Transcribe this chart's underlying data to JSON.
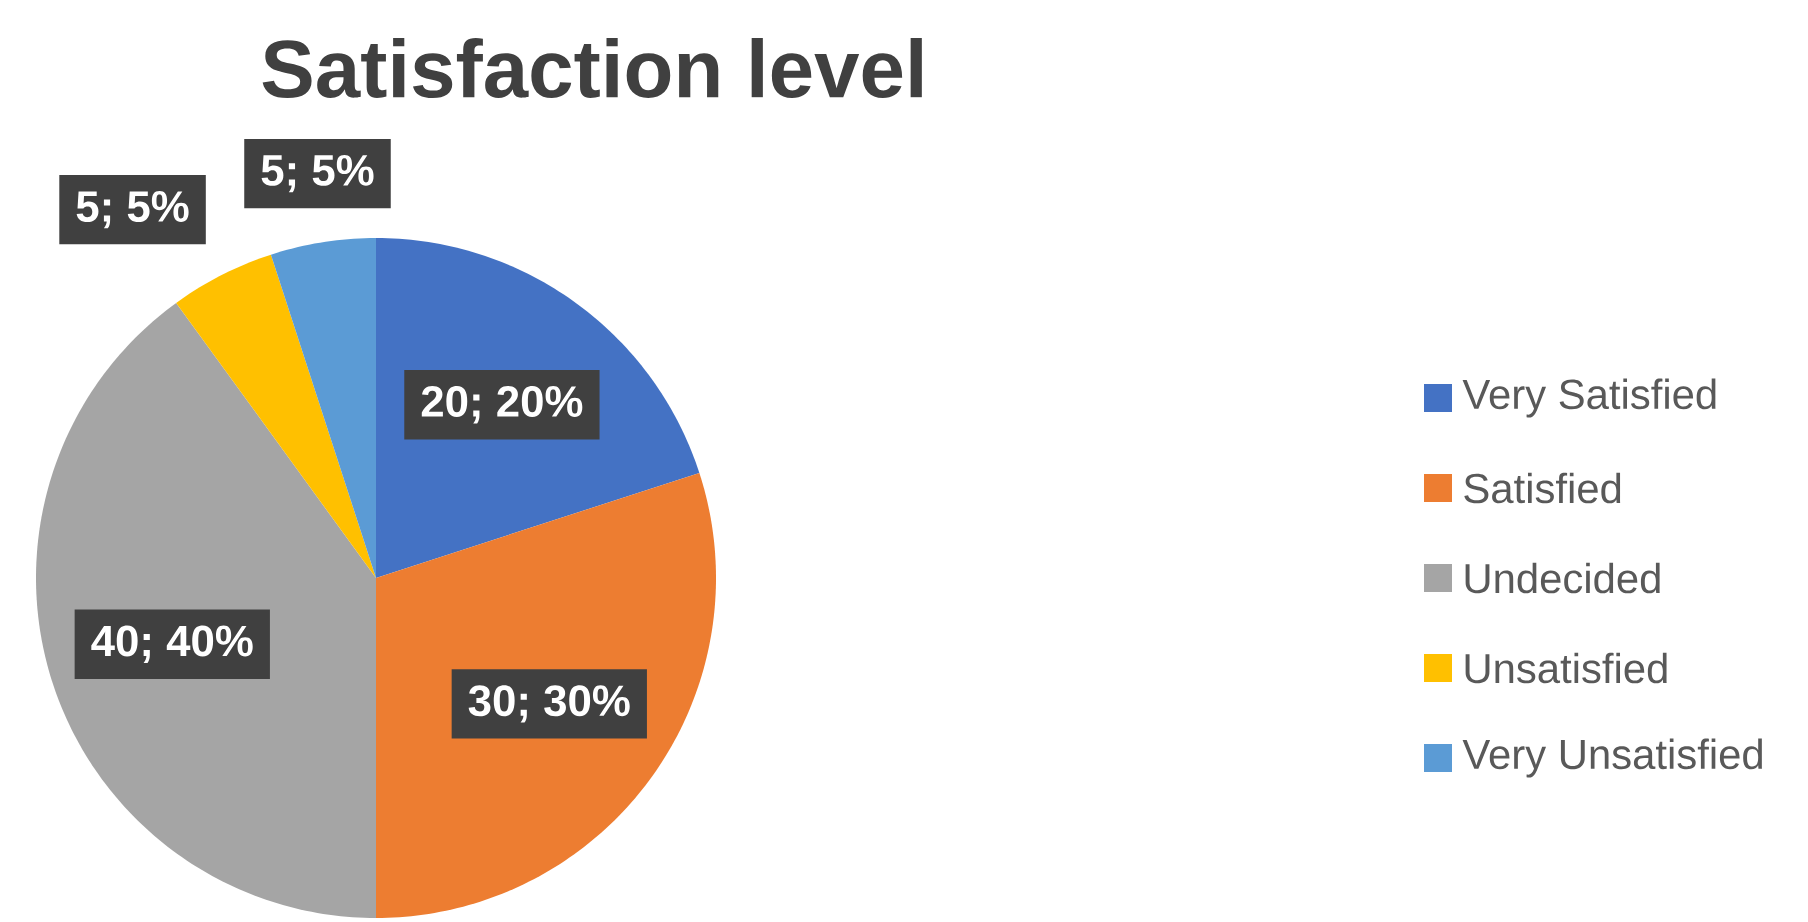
{
  "chart_data": {
    "type": "pie",
    "title": "Satisfaction level",
    "categories": [
      "Very Satisfied",
      "Satisfied",
      "Undecided",
      "Unsatisfied",
      "Very Unsatisfied"
    ],
    "values": [
      20,
      30,
      40,
      5,
      5
    ],
    "colors": [
      "#4472c4",
      "#ed7d31",
      "#a5a5a5",
      "#ffc000",
      "#5b9bd5"
    ],
    "value_labels": [
      "20; 20%",
      "30; 30%",
      "40; 40%",
      "5; 5%",
      "5; 5%"
    ],
    "legend": "right"
  }
}
